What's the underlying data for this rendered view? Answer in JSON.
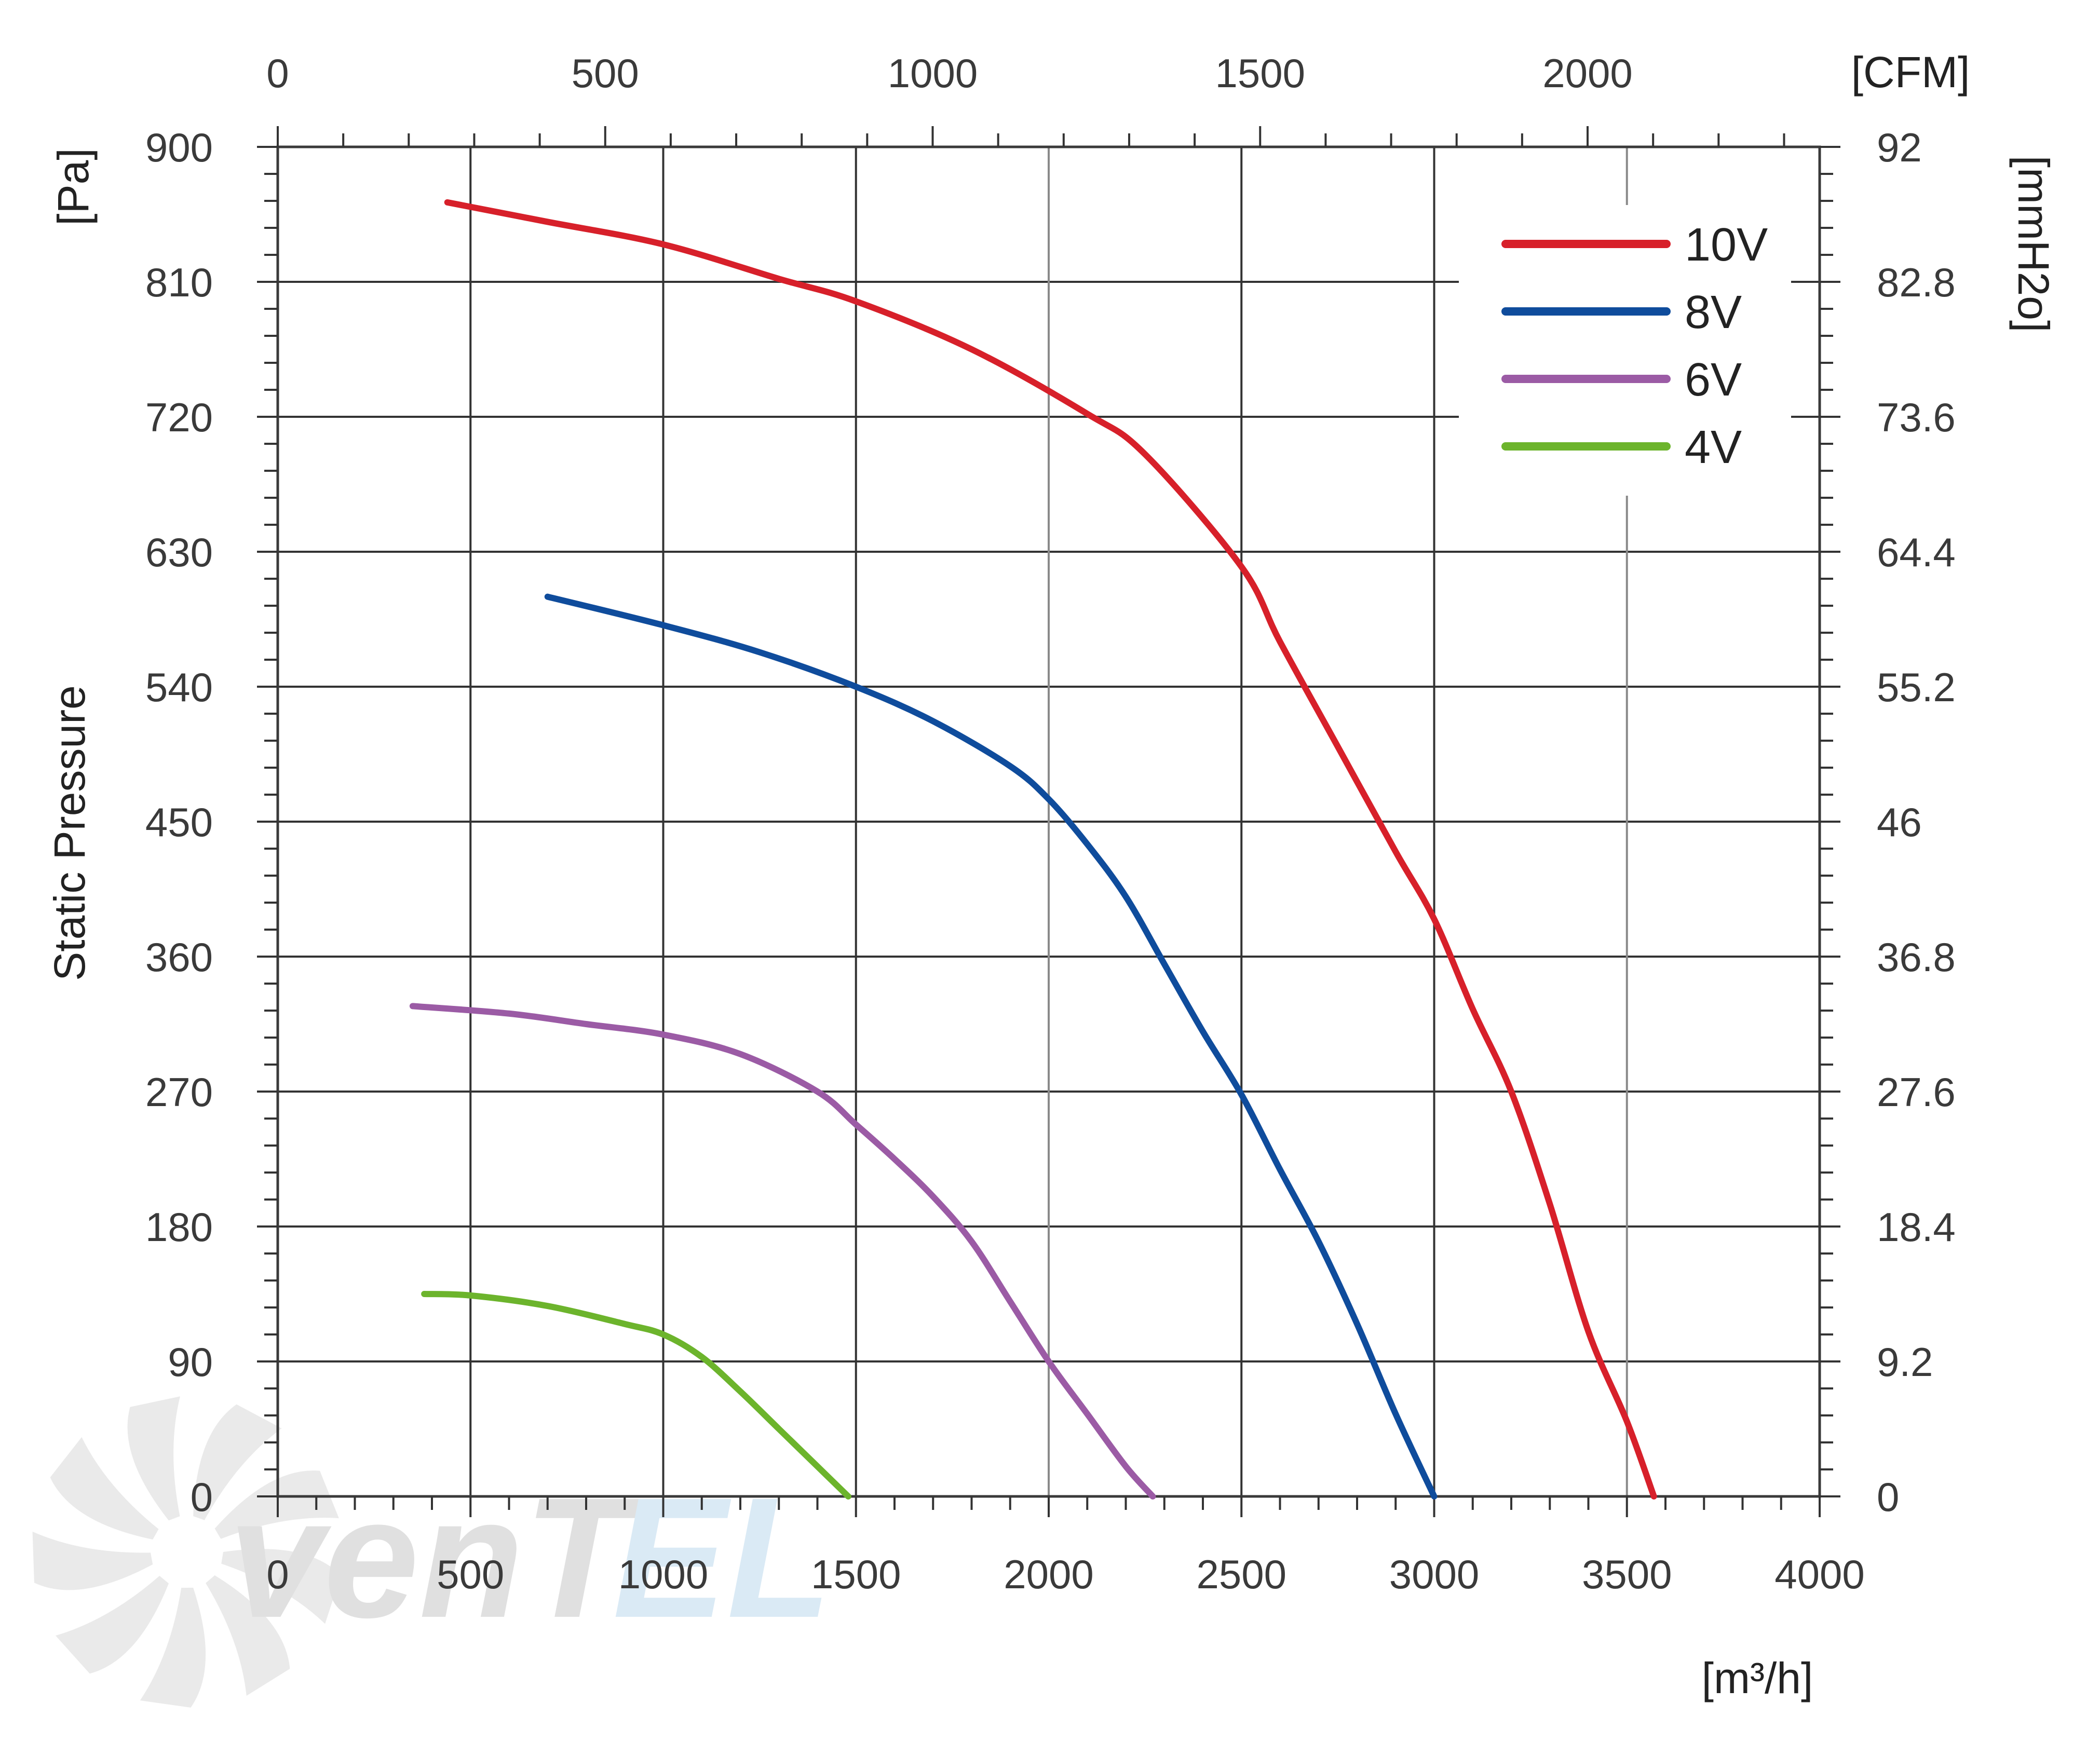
{
  "chart_data": {
    "type": "line",
    "title": "",
    "ylabel": "Static Pressure",
    "y_unit_left": "[Pa]",
    "y_unit_right": "[mmH2o]",
    "x_unit_bottom": "[m³/h]",
    "x_unit_top": "[CFM]",
    "xlim": [
      0,
      4000
    ],
    "ylim": [
      0,
      900
    ],
    "x_ticks": [
      "0",
      "500",
      "1000",
      "1500",
      "2000",
      "2500",
      "3000",
      "3500",
      "4000"
    ],
    "y_ticks_left": [
      "0",
      "90",
      "180",
      "270",
      "360",
      "450",
      "540",
      "630",
      "720",
      "810",
      "900"
    ],
    "y_ticks_right": [
      "0",
      "9.2",
      "18.4",
      "27.6",
      "36.8",
      "46",
      "55.2",
      "64.4",
      "73.6",
      "82.8",
      "92"
    ],
    "top_ticks": [
      "0",
      "500",
      "1000",
      "1500",
      "2000"
    ],
    "grid": true,
    "legend_position": "top-right",
    "series": [
      {
        "name": "10V",
        "color": "#d7202a",
        "x": [
          440,
          700,
          1000,
          1300,
          1500,
          1800,
          2100,
          2250,
          2500,
          2600,
          2750,
          2900,
          3000,
          3100,
          3200,
          3300,
          3400,
          3500,
          3570
        ],
        "y": [
          863,
          850,
          835,
          812,
          797,
          765,
          722,
          695,
          620,
          570,
          500,
          430,
          385,
          325,
          270,
          195,
          110,
          50,
          0
        ]
      },
      {
        "name": "8V",
        "color": "#0f4c9c",
        "x": [
          700,
          1000,
          1250,
          1500,
          1700,
          1900,
          2000,
          2100,
          2200,
          2300,
          2400,
          2500,
          2600,
          2700,
          2800,
          2900,
          3000
        ],
        "y": [
          600,
          581,
          563,
          540,
          517,
          487,
          465,
          435,
          400,
          355,
          310,
          268,
          218,
          170,
          115,
          55,
          0
        ]
      },
      {
        "name": "6V",
        "color": "#9b5ba5",
        "x": [
          350,
          600,
          800,
          1000,
          1200,
          1400,
          1500,
          1600,
          1700,
          1800,
          1900,
          2000,
          2100,
          2200,
          2270
        ],
        "y": [
          327,
          322,
          315,
          308,
          295,
          270,
          248,
          225,
          200,
          170,
          130,
          90,
          55,
          20,
          0
        ]
      },
      {
        "name": "4V",
        "color": "#6cb42c",
        "x": [
          380,
          500,
          700,
          900,
          1000,
          1100,
          1200,
          1300,
          1400,
          1480
        ],
        "y": [
          135,
          134,
          127,
          115,
          108,
          93,
          70,
          45,
          20,
          0
        ]
      }
    ]
  },
  "watermark": {
    "text_dark": "venT",
    "text_light": "EL"
  }
}
